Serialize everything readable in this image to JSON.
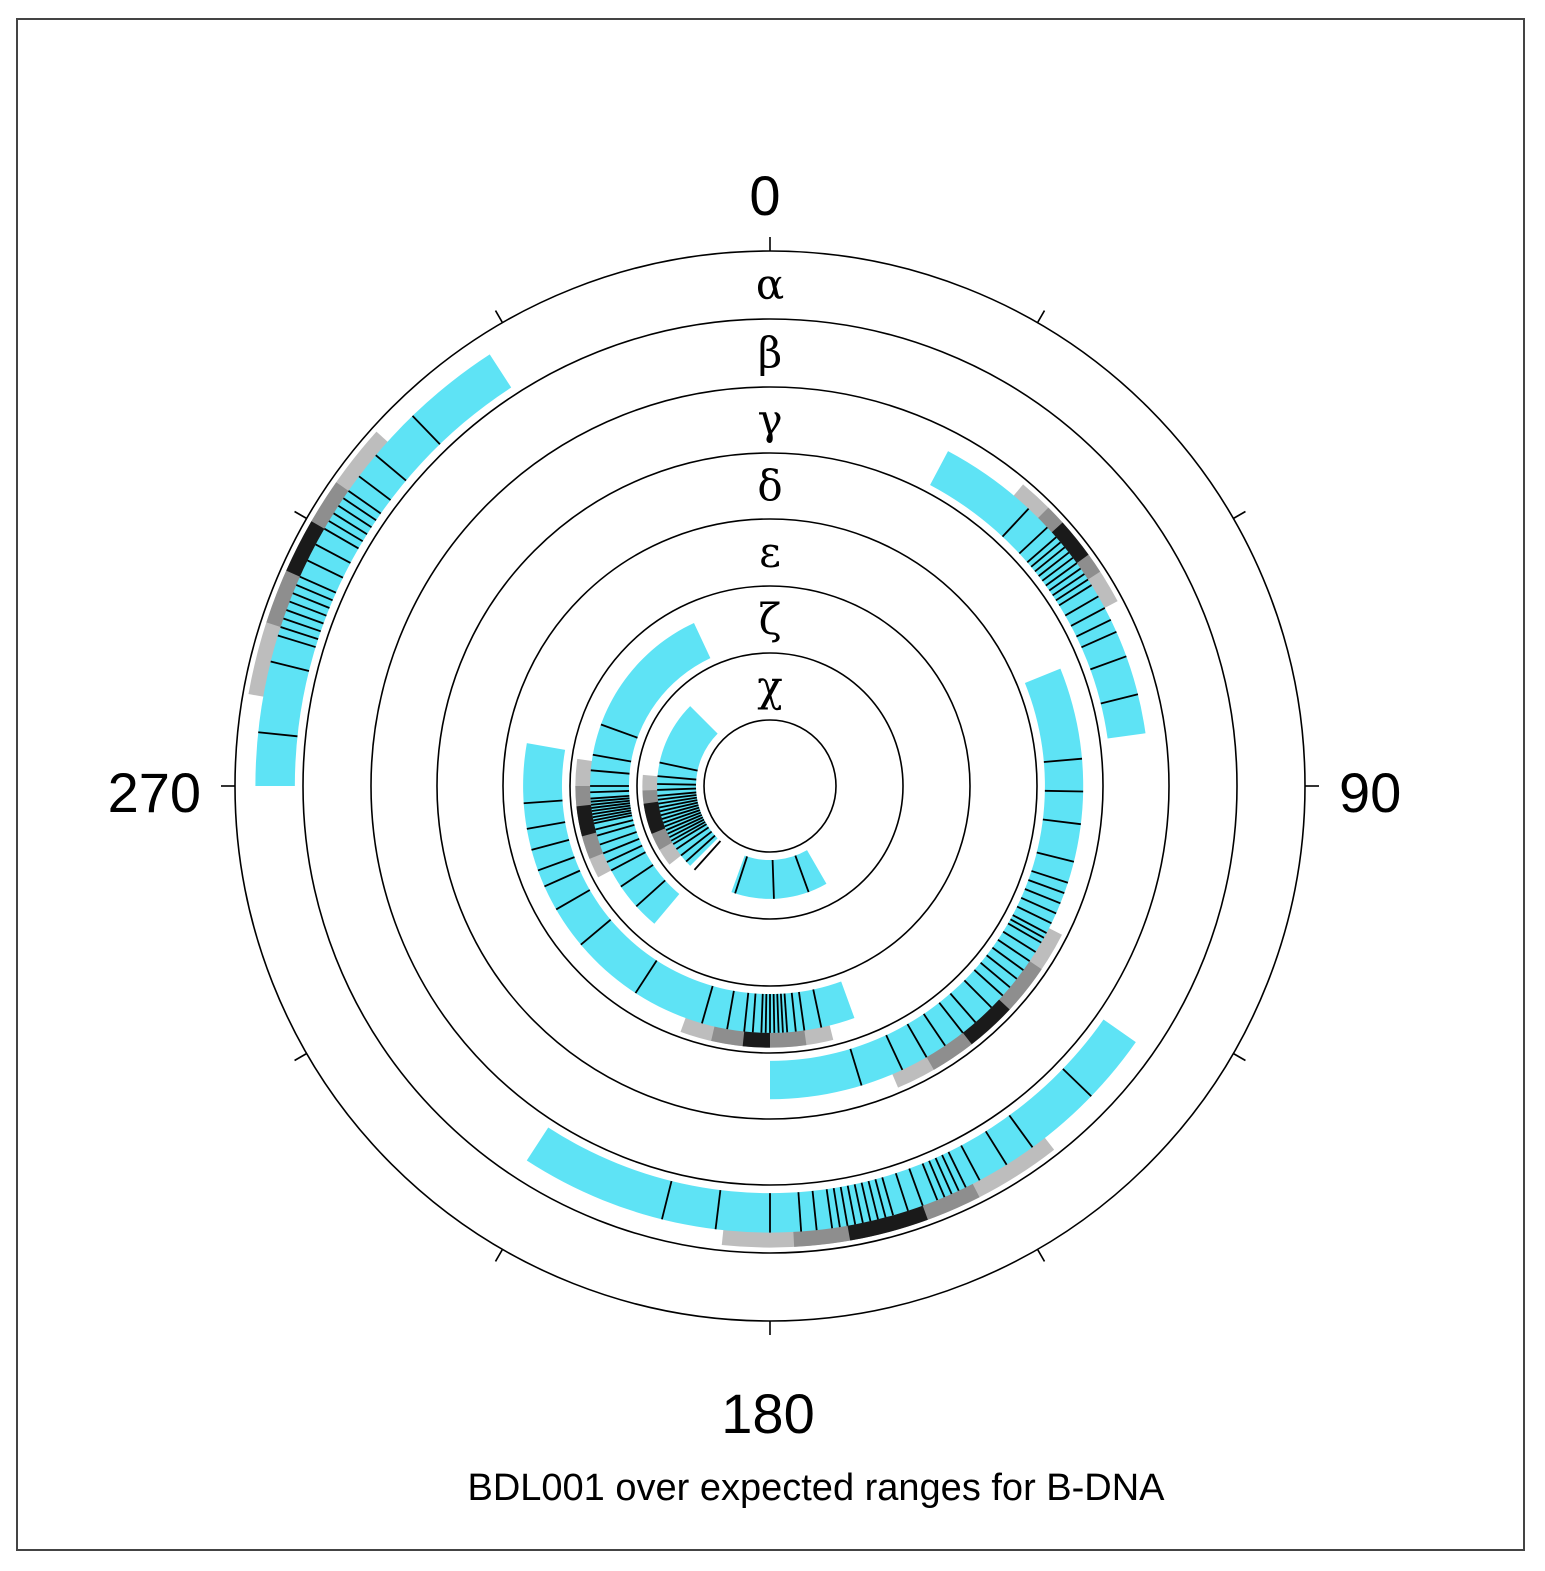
{
  "chart_data": {
    "type": "polar-wheel",
    "title": "BDL001 over expected ranges for B-DNA",
    "angle_ticks": [
      {
        "deg": 0,
        "label": "0"
      },
      {
        "deg": 90,
        "label": "90"
      },
      {
        "deg": 180,
        "label": "180"
      },
      {
        "deg": 270,
        "label": "270"
      }
    ],
    "minor_tick_degs": [
      30,
      60,
      120,
      150,
      210,
      240,
      300,
      330
    ],
    "colors": {
      "expected_range": "#5ee3f5",
      "density_light": "#bdbdbd",
      "density_mid": "#8e8e8e",
      "density_dark": "#1a1a1a",
      "observed": "#000000",
      "ring": "#000000"
    },
    "rings": [
      {
        "name": "α",
        "expected_ranges": [
          [
            270,
            327
          ]
        ],
        "density": {
          "light": [
            280,
            312
          ],
          "mid": [
            288,
            305
          ],
          "dark": [
            294,
            300
          ]
        },
        "observed": [
          276,
          284,
          287,
          288,
          289,
          290,
          291,
          292,
          293,
          294,
          296,
          298,
          300,
          301,
          302,
          303,
          304,
          305,
          307,
          310,
          316
        ]
      },
      {
        "name": "β",
        "expected_ranges": [
          [
            125,
            213
          ]
        ],
        "density": {
          "light": [
            142,
            186
          ],
          "mid": [
            153,
            177
          ],
          "dark": [
            160,
            170
          ]
        },
        "observed": [
          134,
          144,
          148,
          152,
          154,
          155,
          156,
          157,
          158,
          160,
          162,
          164,
          165,
          166,
          167,
          168,
          169,
          170,
          171,
          172,
          174,
          176,
          180,
          187,
          194
        ]
      },
      {
        "name": "γ",
        "expected_ranges": [
          [
            28,
            82
          ]
        ],
        "density": {
          "light": [
            40,
            62
          ],
          "mid": [
            45,
            57
          ],
          "dark": [
            48,
            54
          ]
        },
        "observed": [
          43,
          47,
          49,
          50,
          51,
          52,
          53,
          54,
          55,
          56,
          57,
          58,
          60,
          62,
          64,
          66,
          70,
          76
        ]
      },
      {
        "name": "δ",
        "expected_ranges": [
          [
            68,
            180
          ]
        ],
        "density": {
          "light": [
            117,
            157
          ],
          "mid": [
            124,
            150
          ],
          "dark": [
            133,
            142
          ]
        },
        "observed": [
          85,
          91,
          97,
          104,
          108,
          110,
          112,
          114,
          116,
          118,
          119,
          120,
          122,
          124,
          126,
          128,
          130,
          132,
          135,
          139,
          142,
          146,
          150,
          155,
          163
        ]
      },
      {
        "name": "ε",
        "expected_ranges": [
          [
            160,
            280
          ]
        ],
        "density": {
          "light": [
            166,
            200
          ],
          "mid": [
            172,
            193
          ],
          "dark": [
            180,
            186
          ]
        },
        "observed": [
          168,
          172,
          174,
          176,
          177,
          178,
          179,
          180,
          181,
          182,
          184,
          186,
          190,
          196,
          213,
          230,
          240,
          246,
          250,
          255,
          260,
          266
        ]
      },
      {
        "name": "ζ",
        "expected_ranges": [
          [
            220,
            335
          ]
        ],
        "density": {
          "light": [
            242,
            278
          ],
          "mid": [
            248,
            270
          ],
          "dark": [
            255,
            264
          ]
        },
        "observed": [
          228,
          236,
          242,
          245,
          248,
          251,
          254,
          256,
          258,
          259,
          260,
          261,
          262,
          263,
          264,
          265,
          266,
          268,
          270,
          275,
          280,
          290
        ]
      },
      {
        "name": "χ",
        "expected_ranges": [
          [
            150,
            200
          ],
          [
            225,
            315
          ]
        ],
        "density": {
          "light": [
            232,
            275
          ],
          "mid": [
            240,
            268
          ],
          "dark": [
            248,
            262
          ]
        },
        "observed": [
          160,
          178,
          198,
          222,
          228,
          232,
          236,
          239,
          241,
          243,
          245,
          247,
          249,
          251,
          253,
          255,
          257,
          259,
          261,
          263,
          265,
          268,
          271,
          275,
          282
        ]
      }
    ]
  }
}
